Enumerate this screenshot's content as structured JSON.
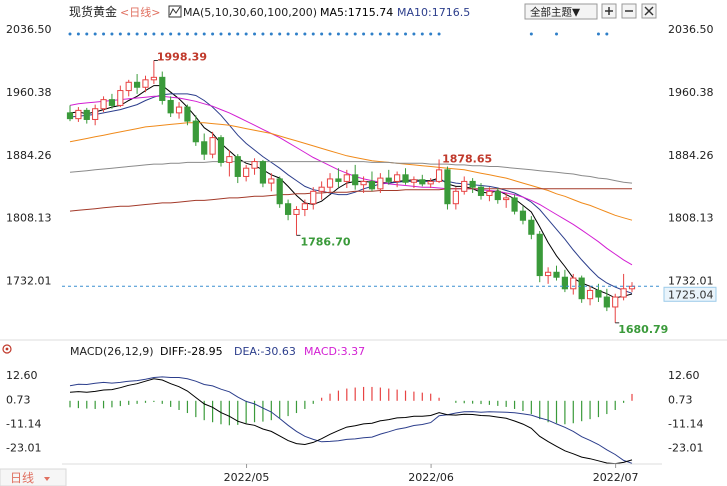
{
  "header": {
    "symbol": "现货黄金",
    "period_prefix": "<",
    "period": "日线",
    "period_suffix": ">",
    "ma_label": "MA(5,10,30,60,100,200)",
    "ma5": "MA5:1715.74",
    "ma10": "MA10:1716.5",
    "theme_button": "全部主题▼"
  },
  "price_axis": {
    "ticks": [
      "2036.50",
      "1960.38",
      "1884.26",
      "1808.13",
      "1732.01"
    ],
    "current_price": "1725.04"
  },
  "macd_header": {
    "label": "MACD(26,12,9)",
    "diff": "DIFF:-28.95",
    "dea": "DEA:-30.63",
    "macd": "MACD:3.37"
  },
  "macd_axis": {
    "ticks": [
      "12.60",
      "0.73",
      "-11.14",
      "-23.01"
    ]
  },
  "x_axis": {
    "ticks": [
      "2022/05",
      "2022/06",
      "2022/07"
    ]
  },
  "footer": {
    "period_button": "日线"
  },
  "annotations": {
    "high": "1998.39",
    "low1": "1786.70",
    "mid_high": "1878.65",
    "low2": "1680.79"
  },
  "colors": {
    "up": "#e84343",
    "down": "#3a9a3a",
    "ma5": "#000000",
    "ma10": "#2c3e8c",
    "ma30": "#d31fd3",
    "ma60": "#f08a1a",
    "ma100": "#8a8a8a",
    "ma200": "#a33a2a",
    "dea": "#2c3e8c",
    "diff": "#000000",
    "bg": "#ffffff"
  },
  "chart_data": [
    {
      "type": "candlestick",
      "title": "现货黄金 日线",
      "x_ticks": [
        "2022/05",
        "2022/06",
        "2022/07"
      ],
      "ylim": [
        1660,
        2045
      ],
      "candles": [
        {
          "o": 1935,
          "h": 1944,
          "l": 1925,
          "c": 1928
        },
        {
          "o": 1928,
          "h": 1942,
          "l": 1924,
          "c": 1938
        },
        {
          "o": 1938,
          "h": 1941,
          "l": 1922,
          "c": 1927
        },
        {
          "o": 1927,
          "h": 1945,
          "l": 1920,
          "c": 1940
        },
        {
          "o": 1940,
          "h": 1955,
          "l": 1936,
          "c": 1951
        },
        {
          "o": 1951,
          "h": 1958,
          "l": 1940,
          "c": 1944
        },
        {
          "o": 1944,
          "h": 1968,
          "l": 1942,
          "c": 1962
        },
        {
          "o": 1962,
          "h": 1975,
          "l": 1955,
          "c": 1972
        },
        {
          "o": 1972,
          "h": 1982,
          "l": 1958,
          "c": 1966
        },
        {
          "o": 1966,
          "h": 1980,
          "l": 1960,
          "c": 1975
        },
        {
          "o": 1975,
          "h": 1998.39,
          "l": 1970,
          "c": 1978
        },
        {
          "o": 1978,
          "h": 1985,
          "l": 1945,
          "c": 1950
        },
        {
          "o": 1950,
          "h": 1955,
          "l": 1930,
          "c": 1935
        },
        {
          "o": 1935,
          "h": 1948,
          "l": 1928,
          "c": 1942
        },
        {
          "o": 1942,
          "h": 1945,
          "l": 1920,
          "c": 1925
        },
        {
          "o": 1925,
          "h": 1932,
          "l": 1895,
          "c": 1900
        },
        {
          "o": 1900,
          "h": 1910,
          "l": 1878,
          "c": 1885
        },
        {
          "o": 1885,
          "h": 1912,
          "l": 1880,
          "c": 1905
        },
        {
          "o": 1905,
          "h": 1908,
          "l": 1870,
          "c": 1875
        },
        {
          "o": 1875,
          "h": 1890,
          "l": 1858,
          "c": 1882
        },
        {
          "o": 1882,
          "h": 1885,
          "l": 1850,
          "c": 1858
        },
        {
          "o": 1858,
          "h": 1872,
          "l": 1852,
          "c": 1868
        },
        {
          "o": 1868,
          "h": 1880,
          "l": 1860,
          "c": 1876
        },
        {
          "o": 1876,
          "h": 1878,
          "l": 1845,
          "c": 1850
        },
        {
          "o": 1850,
          "h": 1862,
          "l": 1840,
          "c": 1855
        },
        {
          "o": 1855,
          "h": 1858,
          "l": 1820,
          "c": 1825
        },
        {
          "o": 1825,
          "h": 1830,
          "l": 1805,
          "c": 1812
        },
        {
          "o": 1812,
          "h": 1822,
          "l": 1786.7,
          "c": 1818
        },
        {
          "o": 1818,
          "h": 1830,
          "l": 1810,
          "c": 1825
        },
        {
          "o": 1825,
          "h": 1845,
          "l": 1818,
          "c": 1840
        },
        {
          "o": 1840,
          "h": 1852,
          "l": 1830,
          "c": 1845
        },
        {
          "o": 1845,
          "h": 1862,
          "l": 1838,
          "c": 1855
        },
        {
          "o": 1855,
          "h": 1868,
          "l": 1845,
          "c": 1852
        },
        {
          "o": 1852,
          "h": 1866,
          "l": 1844,
          "c": 1860
        },
        {
          "o": 1860,
          "h": 1872,
          "l": 1842,
          "c": 1848
        },
        {
          "o": 1848,
          "h": 1858,
          "l": 1838,
          "c": 1852
        },
        {
          "o": 1852,
          "h": 1864,
          "l": 1840,
          "c": 1843
        },
        {
          "o": 1843,
          "h": 1862,
          "l": 1838,
          "c": 1856
        },
        {
          "o": 1856,
          "h": 1866,
          "l": 1848,
          "c": 1852
        },
        {
          "o": 1852,
          "h": 1864,
          "l": 1845,
          "c": 1860
        },
        {
          "o": 1860,
          "h": 1868,
          "l": 1848,
          "c": 1851
        },
        {
          "o": 1851,
          "h": 1858,
          "l": 1844,
          "c": 1854
        },
        {
          "o": 1854,
          "h": 1860,
          "l": 1846,
          "c": 1849
        },
        {
          "o": 1849,
          "h": 1856,
          "l": 1844,
          "c": 1852
        },
        {
          "o": 1852,
          "h": 1878.65,
          "l": 1850,
          "c": 1866
        },
        {
          "o": 1866,
          "h": 1870,
          "l": 1818,
          "c": 1825
        },
        {
          "o": 1825,
          "h": 1845,
          "l": 1818,
          "c": 1840
        },
        {
          "o": 1840,
          "h": 1858,
          "l": 1836,
          "c": 1852
        },
        {
          "o": 1852,
          "h": 1856,
          "l": 1838,
          "c": 1845
        },
        {
          "o": 1845,
          "h": 1850,
          "l": 1830,
          "c": 1835
        },
        {
          "o": 1835,
          "h": 1845,
          "l": 1828,
          "c": 1840
        },
        {
          "o": 1840,
          "h": 1844,
          "l": 1825,
          "c": 1830
        },
        {
          "o": 1830,
          "h": 1838,
          "l": 1820,
          "c": 1832
        },
        {
          "o": 1832,
          "h": 1836,
          "l": 1812,
          "c": 1816
        },
        {
          "o": 1816,
          "h": 1822,
          "l": 1800,
          "c": 1805
        },
        {
          "o": 1805,
          "h": 1810,
          "l": 1782,
          "c": 1788
        },
        {
          "o": 1788,
          "h": 1792,
          "l": 1730,
          "c": 1738
        },
        {
          "o": 1738,
          "h": 1748,
          "l": 1728,
          "c": 1742
        },
        {
          "o": 1742,
          "h": 1750,
          "l": 1732,
          "c": 1736
        },
        {
          "o": 1736,
          "h": 1745,
          "l": 1718,
          "c": 1722
        },
        {
          "o": 1722,
          "h": 1740,
          "l": 1715,
          "c": 1735
        },
        {
          "o": 1735,
          "h": 1738,
          "l": 1705,
          "c": 1710
        },
        {
          "o": 1710,
          "h": 1725,
          "l": 1702,
          "c": 1720
        },
        {
          "o": 1720,
          "h": 1728,
          "l": 1706,
          "c": 1712
        },
        {
          "o": 1712,
          "h": 1722,
          "l": 1695,
          "c": 1700
        },
        {
          "o": 1700,
          "h": 1716,
          "l": 1680.79,
          "c": 1712
        },
        {
          "o": 1712,
          "h": 1740,
          "l": 1708,
          "c": 1722
        },
        {
          "o": 1722,
          "h": 1730,
          "l": 1718,
          "c": 1725.04
        }
      ],
      "moving_averages": {
        "MA5": [
          1935,
          1936,
          1934,
          1936,
          1939,
          1942,
          1944,
          1950,
          1955,
          1962,
          1968,
          1968,
          1960,
          1952,
          1942,
          1930,
          1917,
          1910,
          1898,
          1889,
          1880,
          1874,
          1871,
          1866,
          1860,
          1856,
          1846,
          1835,
          1826,
          1824,
          1828,
          1836,
          1844,
          1850,
          1852,
          1852,
          1851,
          1851,
          1850,
          1852,
          1853,
          1854,
          1853,
          1853,
          1856,
          1849,
          1846,
          1846,
          1843,
          1839,
          1838,
          1841,
          1836,
          1831,
          1823,
          1815,
          1797,
          1778,
          1762,
          1749,
          1735,
          1729,
          1725,
          1720,
          1716,
          1711,
          1713,
          1715.74
        ],
        "MA10": [
          1930,
          1931,
          1932,
          1933,
          1935,
          1937,
          1939,
          1942,
          1945,
          1950,
          1954,
          1957,
          1958,
          1958,
          1958,
          1956,
          1950,
          1942,
          1932,
          1920,
          1908,
          1898,
          1890,
          1882,
          1875,
          1868,
          1860,
          1853,
          1846,
          1842,
          1840,
          1838,
          1836,
          1836,
          1839,
          1843,
          1846,
          1849,
          1850,
          1851,
          1852,
          1852,
          1852,
          1852,
          1853,
          1852,
          1850,
          1849,
          1848,
          1847,
          1846,
          1844,
          1841,
          1838,
          1833,
          1827,
          1818,
          1806,
          1794,
          1782,
          1769,
          1757,
          1746,
          1736,
          1729,
          1724,
          1720,
          1716.5
        ],
        "MA30": [
          1944,
          1946,
          1947,
          1948,
          1949,
          1950,
          1951,
          1952,
          1953,
          1954,
          1955,
          1955,
          1954,
          1953,
          1951,
          1949,
          1946,
          1943,
          1939,
          1935,
          1930,
          1925,
          1920,
          1915,
          1910,
          1905,
          1899,
          1893,
          1887,
          1881,
          1876,
          1871,
          1866,
          1862,
          1858,
          1855,
          1853,
          1851,
          1849,
          1848,
          1847,
          1846,
          1845,
          1845,
          1844,
          1843,
          1843,
          1843,
          1843,
          1842,
          1841,
          1840,
          1838,
          1836,
          1833,
          1829,
          1824,
          1818,
          1812,
          1806,
          1800,
          1793,
          1786,
          1779,
          1771,
          1764,
          1757,
          1751
        ],
        "MA60": [
          1900,
          1902,
          1904,
          1906,
          1908,
          1910,
          1912,
          1914,
          1916,
          1918,
          1919,
          1920,
          1921,
          1922,
          1923,
          1923,
          1923,
          1922,
          1921,
          1920,
          1918,
          1916,
          1914,
          1912,
          1910,
          1907,
          1904,
          1901,
          1898,
          1895,
          1892,
          1889,
          1886,
          1883,
          1881,
          1879,
          1877,
          1876,
          1875,
          1874,
          1873,
          1872,
          1871,
          1870,
          1869,
          1868,
          1867,
          1866,
          1864,
          1862,
          1860,
          1858,
          1856,
          1853,
          1850,
          1847,
          1844,
          1841,
          1837,
          1834,
          1830,
          1826,
          1823,
          1819,
          1815,
          1811,
          1808,
          1805
        ],
        "MA100": [
          1863,
          1864,
          1865,
          1866,
          1867,
          1868,
          1869,
          1870,
          1871,
          1872,
          1873,
          1873,
          1874,
          1874,
          1875,
          1875,
          1875,
          1876,
          1876,
          1876,
          1876,
          1876,
          1876,
          1876,
          1876,
          1876,
          1876,
          1876,
          1876,
          1876,
          1876,
          1876,
          1876,
          1876,
          1876,
          1876,
          1875,
          1875,
          1875,
          1874,
          1874,
          1874,
          1874,
          1873,
          1873,
          1873,
          1872,
          1872,
          1871,
          1871,
          1870,
          1870,
          1869,
          1868,
          1867,
          1866,
          1865,
          1864,
          1863,
          1862,
          1861,
          1859,
          1858,
          1856,
          1855,
          1853,
          1851,
          1850
        ],
        "MA200": [
          1816,
          1817,
          1818,
          1819,
          1820,
          1821,
          1822,
          1822,
          1823,
          1824,
          1825,
          1826,
          1826,
          1827,
          1828,
          1829,
          1829,
          1830,
          1831,
          1832,
          1832,
          1833,
          1834,
          1834,
          1835,
          1836,
          1836,
          1837,
          1837,
          1838,
          1838,
          1839,
          1839,
          1839,
          1840,
          1840,
          1840,
          1841,
          1841,
          1841,
          1842,
          1842,
          1842,
          1842,
          1842,
          1843,
          1843,
          1843,
          1843,
          1843,
          1843,
          1843,
          1843,
          1843,
          1843,
          1843,
          1843,
          1843,
          1843,
          1843,
          1843,
          1843,
          1843,
          1843,
          1843,
          1843,
          1843,
          1843
        ]
      }
    },
    {
      "type": "bar",
      "title": "MACD(26,12,9)",
      "ylim": [
        -30,
        20
      ],
      "macd": [
        -3.2,
        -3.6,
        -3.8,
        -4.0,
        -3.7,
        -3.2,
        -2.6,
        -2.0,
        -1.5,
        -1.0,
        -0.6,
        -1.5,
        -3.0,
        -4.5,
        -6.0,
        -8.0,
        -9.5,
        -10.5,
        -11.5,
        -12.0,
        -11.8,
        -11.0,
        -10.5,
        -10.2,
        -9.5,
        -8.5,
        -7.5,
        -6.0,
        -4.0,
        -1.5,
        1.5,
        3.5,
        5.0,
        6.0,
        6.5,
        6.8,
        6.8,
        6.5,
        6.0,
        5.5,
        5.0,
        4.5,
        4.0,
        3.5,
        1.5,
        0.0,
        -1.0,
        -1.2,
        -1.4,
        -1.6,
        -2.0,
        -2.5,
        -3.0,
        -4.0,
        -5.0,
        -6.5,
        -9.0,
        -10.5,
        -11.0,
        -11.5,
        -11.0,
        -10.0,
        -9.0,
        -8.0,
        -6.5,
        -4.5,
        -1.0,
        3.37
      ],
      "diff": [
        4.2,
        4.5,
        4.2,
        4.6,
        5.3,
        5.5,
        6.4,
        7.6,
        8.4,
        9.6,
        10.8,
        10.2,
        8.4,
        6.9,
        4.8,
        1.6,
        -1.5,
        -3.2,
        -5.8,
        -7.6,
        -10.0,
        -11.3,
        -12.0,
        -13.8,
        -15.0,
        -17.2,
        -19.5,
        -21.0,
        -21.4,
        -20.4,
        -18.6,
        -16.4,
        -14.6,
        -12.9,
        -12.2,
        -11.3,
        -11.0,
        -9.8,
        -9.2,
        -8.4,
        -8.2,
        -7.6,
        -7.6,
        -7.2,
        -5.8,
        -6.8,
        -7.0,
        -6.6,
        -6.7,
        -7.2,
        -7.4,
        -8.0,
        -8.6,
        -9.9,
        -11.4,
        -13.5,
        -17.4,
        -20.0,
        -22.3,
        -24.5,
        -26.0,
        -27.6,
        -28.4,
        -29.4,
        -30.5,
        -30.8,
        -30.2,
        -28.95
      ],
      "dea": [
        7.4,
        8.1,
        8.0,
        8.6,
        9.0,
        8.7,
        9.0,
        9.6,
        9.9,
        10.6,
        11.4,
        11.7,
        11.4,
        11.4,
        10.8,
        9.6,
        8.0,
        7.3,
        5.7,
        4.4,
        1.8,
        -0.3,
        -1.5,
        -3.6,
        -5.5,
        -8.7,
        -12.0,
        -15.0,
        -17.4,
        -18.9,
        -20.1,
        -19.9,
        -19.6,
        -18.9,
        -18.7,
        -18.1,
        -17.8,
        -16.3,
        -15.2,
        -13.9,
        -13.2,
        -12.1,
        -11.6,
        -10.7,
        -7.3,
        -6.8,
        -6.0,
        -5.4,
        -5.3,
        -5.6,
        -5.4,
        -5.5,
        -5.6,
        -5.9,
        -6.4,
        -7.0,
        -8.4,
        -9.5,
        -11.3,
        -13.0,
        -15.0,
        -17.6,
        -19.4,
        -21.4,
        -24.0,
        -26.3,
        -29.2,
        -30.63
      ]
    }
  ]
}
